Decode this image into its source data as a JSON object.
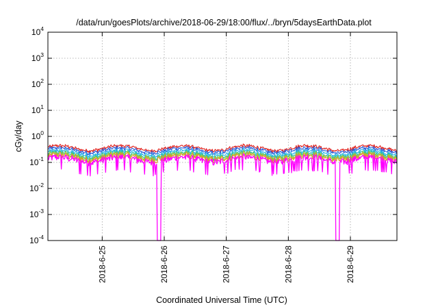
{
  "chart_data": {
    "type": "line",
    "title": "/data/run/goesPlots/archive/2018-06-29/18:00/flux/../bryn/5daysEarthData.plot",
    "xlabel": "Coordinated Universal Time (UTC)",
    "ylabel": "cGy/day",
    "yscale": "log",
    "ylim": [
      0.0001,
      10000
    ],
    "yticks": [
      {
        "base": "10",
        "exp": "-4",
        "value": 0.0001
      },
      {
        "base": "10",
        "exp": "-3",
        "value": 0.001
      },
      {
        "base": "10",
        "exp": "-2",
        "value": 0.01
      },
      {
        "base": "10",
        "exp": "-1",
        "value": 0.1
      },
      {
        "base": "10",
        "exp": "0",
        "value": 1
      },
      {
        "base": "10",
        "exp": "1",
        "value": 10
      },
      {
        "base": "10",
        "exp": "2",
        "value": 100
      },
      {
        "base": "10",
        "exp": "3",
        "value": 1000
      },
      {
        "base": "10",
        "exp": "4",
        "value": 10000
      }
    ],
    "xlim": [
      "2018-06-24T03:00",
      "2018-06-29T18:00"
    ],
    "xticks": [
      {
        "label": "2018-6-25",
        "value": "2018-06-25T00:00"
      },
      {
        "label": "2018-6-26",
        "value": "2018-06-26T00:00"
      },
      {
        "label": "2018-6-27",
        "value": "2018-06-27T00:00"
      },
      {
        "label": "2018-6-28",
        "value": "2018-06-28T00:00"
      },
      {
        "label": "2018-6-29",
        "value": "2018-06-29T00:00"
      }
    ],
    "grid": true,
    "legend": "none",
    "series": [
      {
        "color": "#e0201c",
        "base": 0.36
      },
      {
        "color": "#2a5bd7",
        "base": 0.3
      },
      {
        "color": "#2ab3ea",
        "base": 0.24
      },
      {
        "color": "#1fbfa0",
        "base": 0.2
      },
      {
        "color": "#9aca3c",
        "base": 0.18
      },
      {
        "color": "#d89a2a",
        "base": 0.16
      },
      {
        "color": "#ff00ff",
        "base": 0.13
      }
    ],
    "dropouts": [
      "2018-06-25T22:00",
      "2018-06-28T19:00"
    ]
  }
}
